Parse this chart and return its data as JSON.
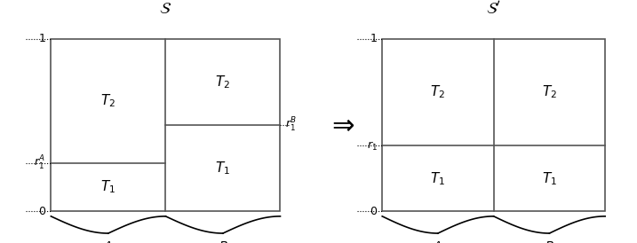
{
  "title_left": "$\\mathcal{S}$",
  "title_right": "$\\mathcal{S}'$",
  "r1A": 0.28,
  "r1B": 0.5,
  "r1": 0.38,
  "label_T1": "$T_1$",
  "label_T2": "$T_2$",
  "label_r1A": "$r_1^A$",
  "label_r1B": "$r_1^B$",
  "label_r1": "$r_1$",
  "label_A": "$A$",
  "label_B": "$B$",
  "label_0": "0",
  "label_1": "1",
  "box_color": "#555555",
  "text_color": "#000000",
  "bg_color": "#ffffff"
}
